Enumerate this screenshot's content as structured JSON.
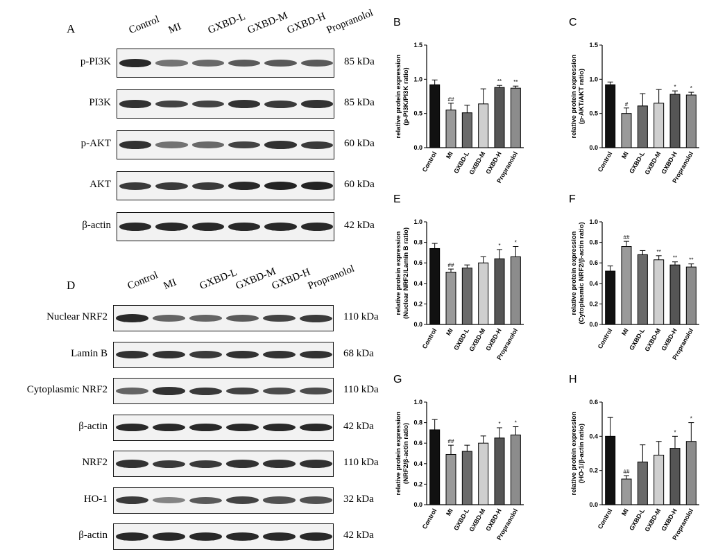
{
  "blotA": {
    "letter": "A",
    "lanes": [
      "Control",
      "MI",
      "GXBD-L",
      "GXBD-M",
      "GXBD-H",
      "Propranolol"
    ],
    "rows": [
      {
        "label": "p-PI3K",
        "kda": "85 kDa",
        "intensity": [
          0.9,
          0.45,
          0.5,
          0.6,
          0.62,
          0.6
        ]
      },
      {
        "label": "PI3K",
        "kda": "85 kDa",
        "intensity": [
          0.85,
          0.75,
          0.75,
          0.85,
          0.8,
          0.85
        ]
      },
      {
        "label": "p-AKT",
        "kda": "60 kDa",
        "intensity": [
          0.85,
          0.45,
          0.5,
          0.75,
          0.85,
          0.8
        ]
      },
      {
        "label": "AKT",
        "kda": "60 kDa",
        "intensity": [
          0.8,
          0.8,
          0.8,
          0.9,
          0.95,
          0.95
        ]
      },
      {
        "label": "β-actin",
        "kda": "42 kDa",
        "intensity": [
          0.9,
          0.9,
          0.9,
          0.9,
          0.9,
          0.9
        ]
      }
    ]
  },
  "blotD": {
    "letter": "D",
    "lanes": [
      "Control",
      "MI",
      "GXBD-L",
      "GXBD-M",
      "GXBD-H",
      "Propranolol"
    ],
    "rows": [
      {
        "label": "Nuclear NRF2",
        "kda": "110 kDa",
        "intensity": [
          0.9,
          0.55,
          0.55,
          0.6,
          0.75,
          0.8
        ]
      },
      {
        "label": "Lamin B",
        "kda": "68 kDa",
        "intensity": [
          0.85,
          0.85,
          0.8,
          0.85,
          0.85,
          0.85
        ]
      },
      {
        "label": "Cytoplasmic NRF2",
        "kda": "110 kDa",
        "intensity": [
          0.55,
          0.85,
          0.8,
          0.75,
          0.7,
          0.7
        ]
      },
      {
        "label": "β-actin",
        "kda": "42 kDa",
        "intensity": [
          0.9,
          0.9,
          0.9,
          0.9,
          0.9,
          0.9
        ]
      },
      {
        "label": "NRF2",
        "kda": "110 kDa",
        "intensity": [
          0.85,
          0.8,
          0.8,
          0.85,
          0.85,
          0.85
        ]
      },
      {
        "label": "HO-1",
        "kda": "32 kDa",
        "intensity": [
          0.8,
          0.35,
          0.6,
          0.75,
          0.65,
          0.65
        ]
      },
      {
        "label": "β-actin",
        "kda": "42 kDa",
        "intensity": [
          0.9,
          0.9,
          0.9,
          0.9,
          0.9,
          0.9
        ]
      }
    ]
  },
  "chart_data": [
    {
      "type": "bar",
      "letter": "B",
      "categories": [
        "Control",
        "MI",
        "GXBD-L",
        "GXBD-M",
        "GXBD-H",
        "Propranolol"
      ],
      "values": [
        0.92,
        0.55,
        0.51,
        0.64,
        0.88,
        0.87
      ],
      "errors": [
        0.07,
        0.1,
        0.11,
        0.22,
        0.03,
        0.03
      ],
      "marks": [
        "",
        "##",
        "",
        "",
        "**",
        "**"
      ],
      "ylabel": [
        "relative protein expression",
        "(p-PI3K/PI3K ratio)"
      ],
      "ylim": [
        0,
        1.5
      ],
      "yticks": [
        "0.0",
        "0.5",
        "1.0",
        "1.5"
      ]
    },
    {
      "type": "bar",
      "letter": "C",
      "categories": [
        "Control",
        "MI",
        "GXBD-L",
        "GXBD-M",
        "GXBD-H",
        "Propranolol"
      ],
      "values": [
        0.92,
        0.5,
        0.61,
        0.65,
        0.78,
        0.77
      ],
      "errors": [
        0.04,
        0.08,
        0.18,
        0.2,
        0.05,
        0.04
      ],
      "marks": [
        "",
        "#",
        "",
        "",
        "*",
        "*"
      ],
      "ylabel": [
        "relative protein expression",
        "(p-AKT/AKT ratio)"
      ],
      "ylim": [
        0,
        1.5
      ],
      "yticks": [
        "0.0",
        "0.5",
        "1.0",
        "1.5"
      ]
    },
    {
      "type": "bar",
      "letter": "E",
      "categories": [
        "Control",
        "MI",
        "GXBD-L",
        "GXBD-M",
        "GXBD-H",
        "Propranolol"
      ],
      "values": [
        0.74,
        0.51,
        0.55,
        0.6,
        0.64,
        0.66
      ],
      "errors": [
        0.05,
        0.03,
        0.03,
        0.06,
        0.09,
        0.1
      ],
      "marks": [
        "",
        "##",
        "",
        "",
        "*",
        "*"
      ],
      "ylabel": [
        "relative protein expression",
        "(Nuclear NRF2/Lamin B ratio)"
      ],
      "ylim": [
        0,
        1.0
      ],
      "yticks": [
        "0.0",
        "0.2",
        "0.4",
        "0.6",
        "0.8",
        "1.0"
      ]
    },
    {
      "type": "bar",
      "letter": "F",
      "categories": [
        "Control",
        "MI",
        "GXBD-L",
        "GXBD-M",
        "GXBD-H",
        "Propranolol"
      ],
      "values": [
        0.52,
        0.76,
        0.68,
        0.63,
        0.58,
        0.56
      ],
      "errors": [
        0.05,
        0.05,
        0.04,
        0.04,
        0.03,
        0.03
      ],
      "marks": [
        "",
        "##",
        "",
        "**",
        "**",
        "**"
      ],
      "ylabel": [
        "relative protein expression",
        "(Cytoplasmic NRF2/β-actin ratio)"
      ],
      "ylim": [
        0,
        1.0
      ],
      "yticks": [
        "0.0",
        "0.2",
        "0.4",
        "0.6",
        "0.8",
        "1.0"
      ]
    },
    {
      "type": "bar",
      "letter": "G",
      "categories": [
        "Control",
        "MI",
        "GXBD-L",
        "GXBD-M",
        "GXBD-H",
        "Propranolol"
      ],
      "values": [
        0.73,
        0.49,
        0.52,
        0.6,
        0.65,
        0.68
      ],
      "errors": [
        0.1,
        0.09,
        0.06,
        0.07,
        0.1,
        0.08
      ],
      "marks": [
        "",
        "##",
        "",
        "",
        "*",
        "*"
      ],
      "ylabel": [
        "relative protein expression",
        "(NRF2/β-actin ratio)"
      ],
      "ylim": [
        0,
        1.0
      ],
      "yticks": [
        "0.0",
        "0.2",
        "0.4",
        "0.6",
        "0.8",
        "1.0"
      ]
    },
    {
      "type": "bar",
      "letter": "H",
      "categories": [
        "Control",
        "MI",
        "GXBD-L",
        "GXBD-M",
        "GXBD-H",
        "Propranolol"
      ],
      "values": [
        0.4,
        0.15,
        0.25,
        0.29,
        0.33,
        0.37
      ],
      "errors": [
        0.11,
        0.02,
        0.1,
        0.08,
        0.07,
        0.11
      ],
      "marks": [
        "",
        "##",
        "",
        "",
        "*",
        "*"
      ],
      "ylabel": [
        "relative protein expression",
        "(HO-1/β-actin ratio)"
      ],
      "ylim": [
        0,
        0.6
      ],
      "yticks": [
        "0.0",
        "0.2",
        "0.4",
        "0.6"
      ]
    }
  ],
  "colors": {
    "bars": [
      "#111111",
      "#9a9a9a",
      "#6a6a6a",
      "#cfcfcf",
      "#555555",
      "#8c8c8c"
    ],
    "band": "#1a1a1a",
    "membrane": "#f2f2f2"
  }
}
